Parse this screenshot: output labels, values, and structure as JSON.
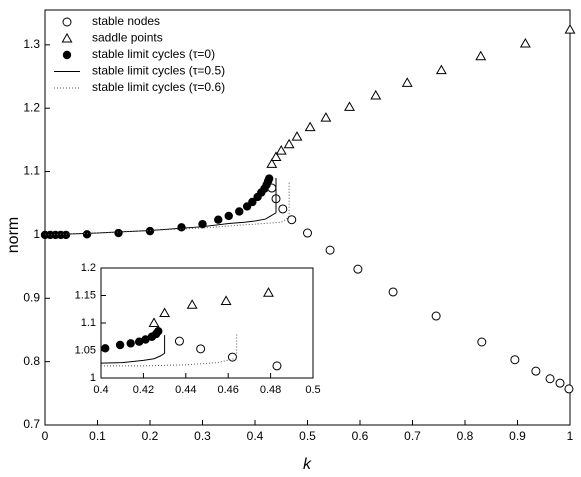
{
  "chart_data": [
    {
      "type": "scatter",
      "xlabel": "k",
      "ylabel": "norm",
      "xlim": [
        0,
        1
      ],
      "ylim": [
        0.7,
        1.355
      ],
      "xticks": [
        0,
        0.1,
        0.2,
        0.3,
        0.4,
        0.5,
        0.6,
        0.7,
        0.8,
        0.9,
        1
      ],
      "yticks": [
        0.7,
        0.8,
        0.9,
        1,
        1.1,
        1.2,
        1.3
      ],
      "legend": "upper left",
      "series": [
        {
          "name": "stable nodes",
          "marker": "open-circle",
          "color": "#000000",
          "x": [
            0.432,
            0.44,
            0.453,
            0.47,
            0.5,
            0.543,
            0.596,
            0.663,
            0.745,
            0.832,
            0.895,
            0.935,
            0.962,
            0.981,
            0.998
          ],
          "values": [
            1.074,
            1.057,
            1.041,
            1.024,
            1.003,
            0.976,
            0.946,
            0.91,
            0.872,
            0.831,
            0.803,
            0.785,
            0.773,
            0.766,
            0.757
          ]
        },
        {
          "name": "saddle points",
          "marker": "open-triangle",
          "color": "#000000",
          "x": [
            0.432,
            0.44,
            0.45,
            0.465,
            0.48,
            0.505,
            0.535,
            0.58,
            0.63,
            0.69,
            0.755,
            0.83,
            0.915,
            1.0
          ],
          "values": [
            1.112,
            1.123,
            1.133,
            1.143,
            1.155,
            1.17,
            1.185,
            1.202,
            1.22,
            1.24,
            1.26,
            1.282,
            1.302,
            1.324
          ]
        },
        {
          "name": "stable limit cycles (τ=0)",
          "marker": "filled-circle",
          "color": "#000000",
          "x": [
            0,
            0.01,
            0.02,
            0.03,
            0.04,
            0.08,
            0.14,
            0.2,
            0.26,
            0.3,
            0.33,
            0.35,
            0.37,
            0.385,
            0.395,
            0.405,
            0.412,
            0.418,
            0.422,
            0.425,
            0.427
          ],
          "values": [
            1.0,
            1.0,
            1.0,
            1.0,
            1.0,
            1.001,
            1.003,
            1.006,
            1.012,
            1.017,
            1.024,
            1.03,
            1.037,
            1.045,
            1.052,
            1.06,
            1.067,
            1.073,
            1.079,
            1.085,
            1.089
          ]
        },
        {
          "name": "stable limit cycles (τ=0.5)",
          "marker": "solid-line",
          "color": "#000000",
          "x": [
            0,
            0.1,
            0.2,
            0.3,
            0.35,
            0.38,
            0.4,
            0.42,
            0.43,
            0.44,
            0.44
          ],
          "values": [
            1.0,
            1.003,
            1.007,
            1.013,
            1.018,
            1.02,
            1.022,
            1.025,
            1.03,
            1.035,
            1.09
          ]
        },
        {
          "name": "stable limit cycles (τ=0.6)",
          "marker": "dotted-line",
          "color": "#555555",
          "x": [
            0,
            0.1,
            0.2,
            0.3,
            0.35,
            0.4,
            0.45,
            0.46,
            0.465,
            0.465
          ],
          "values": [
            1.0,
            1.003,
            1.007,
            1.011,
            1.014,
            1.017,
            1.02,
            1.025,
            1.03,
            1.085
          ]
        }
      ]
    },
    {
      "type": "scatter",
      "xlim": [
        0.4,
        0.5
      ],
      "ylim": [
        1,
        1.2
      ],
      "xticks": [
        0.4,
        0.42,
        0.44,
        0.46,
        0.48,
        0.5
      ],
      "yticks": [
        1,
        1.05,
        1.1,
        1.15,
        1.2
      ],
      "series": [
        {
          "marker": "open-circle",
          "color": "#000000",
          "x": [
            0.437,
            0.447,
            0.462,
            0.483
          ],
          "values": [
            1.067,
            1.053,
            1.038,
            1.022
          ]
        },
        {
          "marker": "open-triangle",
          "color": "#000000",
          "x": [
            0.425,
            0.43,
            0.443,
            0.459,
            0.479
          ],
          "values": [
            1.1,
            1.118,
            1.133,
            1.14,
            1.155
          ]
        },
        {
          "marker": "filled-circle",
          "color": "#000000",
          "x": [
            0.402,
            0.409,
            0.414,
            0.418,
            0.421,
            0.424,
            0.426,
            0.427
          ],
          "values": [
            1.054,
            1.06,
            1.063,
            1.066,
            1.07,
            1.075,
            1.08,
            1.085
          ]
        },
        {
          "marker": "solid-line",
          "color": "#000000",
          "x": [
            0.4,
            0.41,
            0.42,
            0.425,
            0.428,
            0.43,
            0.43
          ],
          "values": [
            1.027,
            1.028,
            1.032,
            1.035,
            1.04,
            1.045,
            1.078
          ]
        },
        {
          "marker": "dotted-line",
          "color": "#555555",
          "x": [
            0.4,
            0.42,
            0.44,
            0.455,
            0.464,
            0.464
          ],
          "values": [
            1.022,
            1.022,
            1.024,
            1.028,
            1.036,
            1.082
          ]
        }
      ]
    }
  ]
}
